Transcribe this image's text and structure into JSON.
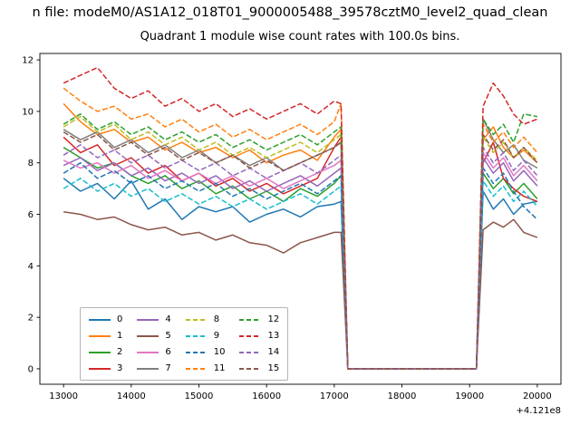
{
  "header": {
    "suptitle": "n file: modeM0/AS1A12_018T01_9000005488_39578cztM0_level2_quad_clean"
  },
  "chart_data": {
    "type": "line",
    "title": "Quadrant 1 module wise count rates with 100.0s bins.",
    "xlabel": "",
    "ylabel": "",
    "x_offset_label": "+4.121e8",
    "xticks": [
      13000,
      14000,
      15000,
      16000,
      17000,
      18000,
      19000,
      20000
    ],
    "yticks": [
      0,
      2,
      4,
      6,
      8,
      10,
      12
    ],
    "xlim": [
      12650,
      20350
    ],
    "ylim": [
      -0.6,
      12.25
    ],
    "grid": false,
    "legend_position": "lower-left, 4 columns",
    "x": [
      13000,
      13250,
      13500,
      13750,
      14000,
      14250,
      14500,
      14750,
      15000,
      15250,
      15500,
      15750,
      16000,
      16250,
      16500,
      16750,
      17000,
      17100,
      17200,
      19100,
      19200,
      19350,
      19500,
      19650,
      19800,
      20000
    ],
    "series": [
      {
        "name": "0",
        "color": "#1f77b4",
        "dashed": false,
        "values": [
          7.4,
          6.9,
          7.2,
          6.6,
          7.3,
          6.2,
          6.6,
          5.8,
          6.3,
          6.1,
          6.3,
          5.7,
          6.0,
          6.2,
          5.9,
          6.3,
          6.4,
          6.5,
          0,
          0,
          6.9,
          6.2,
          6.6,
          6.0,
          6.4,
          6.5
        ]
      },
      {
        "name": "1",
        "color": "#ff7f0e",
        "dashed": false,
        "values": [
          10.3,
          9.6,
          9.1,
          9.3,
          8.8,
          9.0,
          8.5,
          8.8,
          8.4,
          8.6,
          8.2,
          8.5,
          8.0,
          8.3,
          8.5,
          8.1,
          9.0,
          9.3,
          0,
          0,
          8.9,
          9.4,
          8.6,
          8.2,
          8.5,
          8.0
        ]
      },
      {
        "name": "2",
        "color": "#2ca02c",
        "dashed": false,
        "values": [
          8.6,
          8.2,
          7.8,
          8.0,
          7.5,
          7.2,
          7.5,
          7.0,
          7.3,
          6.8,
          7.1,
          6.6,
          6.9,
          6.5,
          7.0,
          6.7,
          7.2,
          7.5,
          0,
          0,
          7.6,
          7.0,
          7.4,
          6.8,
          7.2,
          6.6
        ]
      },
      {
        "name": "3",
        "color": "#d62728",
        "dashed": false,
        "values": [
          9.0,
          8.4,
          8.7,
          7.9,
          8.2,
          7.6,
          7.9,
          7.3,
          7.6,
          7.1,
          7.4,
          6.9,
          7.2,
          6.8,
          7.1,
          7.4,
          8.6,
          9.0,
          0,
          0,
          8.0,
          8.8,
          7.4,
          7.0,
          6.7,
          6.5
        ]
      },
      {
        "name": "4",
        "color": "#9467bd",
        "dashed": false,
        "values": [
          7.9,
          8.2,
          7.7,
          8.0,
          7.5,
          7.8,
          7.3,
          7.6,
          7.2,
          7.5,
          7.0,
          7.3,
          6.9,
          7.2,
          7.5,
          7.1,
          7.6,
          7.8,
          0,
          0,
          8.2,
          7.6,
          8.0,
          7.3,
          7.7,
          7.1
        ]
      },
      {
        "name": "5",
        "color": "#8c564b",
        "dashed": false,
        "values": [
          6.1,
          6.0,
          5.8,
          5.9,
          5.6,
          5.4,
          5.5,
          5.2,
          5.3,
          5.0,
          5.2,
          4.9,
          4.8,
          4.5,
          4.9,
          5.1,
          5.3,
          5.3,
          0,
          0,
          5.4,
          5.7,
          5.5,
          5.8,
          5.3,
          5.1
        ]
      },
      {
        "name": "6",
        "color": "#e377c2",
        "dashed": false,
        "values": [
          8.1,
          7.8,
          8.0,
          7.6,
          7.9,
          7.4,
          7.7,
          7.3,
          7.6,
          7.2,
          7.5,
          7.1,
          7.4,
          7.0,
          7.3,
          7.6,
          7.9,
          8.1,
          0,
          0,
          8.4,
          7.8,
          8.2,
          7.5,
          7.9,
          7.3
        ]
      },
      {
        "name": "7",
        "color": "#7f7f7f",
        "dashed": false,
        "values": [
          9.3,
          8.9,
          9.2,
          8.6,
          8.9,
          8.4,
          8.7,
          8.2,
          8.5,
          8.0,
          8.3,
          7.9,
          8.2,
          7.7,
          8.0,
          8.3,
          8.6,
          8.8,
          0,
          0,
          9.7,
          8.9,
          8.4,
          8.7,
          8.1,
          7.8
        ]
      },
      {
        "name": "8",
        "color": "#bcbd22",
        "dashed": true,
        "values": [
          9.4,
          9.8,
          9.2,
          9.5,
          8.9,
          9.2,
          8.7,
          9.0,
          8.5,
          8.8,
          8.3,
          8.6,
          8.2,
          8.5,
          8.8,
          8.4,
          8.9,
          9.1,
          0,
          0,
          9.0,
          8.4,
          8.8,
          8.2,
          8.6,
          8.1
        ]
      },
      {
        "name": "9",
        "color": "#17becf",
        "dashed": true,
        "values": [
          7.0,
          7.4,
          6.9,
          7.2,
          6.7,
          7.0,
          6.5,
          6.8,
          6.4,
          6.7,
          6.3,
          6.6,
          6.2,
          6.5,
          6.8,
          6.4,
          6.9,
          7.1,
          0,
          0,
          7.3,
          6.7,
          7.1,
          6.5,
          6.9,
          6.3
        ]
      },
      {
        "name": "10",
        "color": "#1f77b4",
        "dashed": true,
        "values": [
          7.6,
          8.0,
          7.4,
          7.7,
          7.2,
          7.5,
          7.0,
          7.3,
          6.9,
          7.2,
          6.7,
          7.0,
          6.6,
          6.9,
          7.2,
          6.8,
          7.3,
          7.5,
          0,
          0,
          7.8,
          7.2,
          7.6,
          6.9,
          6.3,
          5.8
        ]
      },
      {
        "name": "11",
        "color": "#ff7f0e",
        "dashed": true,
        "values": [
          10.9,
          10.4,
          10.0,
          10.2,
          9.7,
          9.9,
          9.4,
          9.7,
          9.2,
          9.5,
          9.0,
          9.3,
          8.9,
          9.2,
          9.5,
          9.1,
          9.6,
          10.3,
          0,
          0,
          9.5,
          8.8,
          9.2,
          8.6,
          9.0,
          8.4
        ]
      },
      {
        "name": "12",
        "color": "#2ca02c",
        "dashed": true,
        "values": [
          9.5,
          9.9,
          9.3,
          9.6,
          9.1,
          9.4,
          8.9,
          9.2,
          8.8,
          9.1,
          8.6,
          8.9,
          8.5,
          8.8,
          9.1,
          8.7,
          9.2,
          9.4,
          0,
          0,
          9.7,
          9.1,
          9.5,
          8.8,
          9.9,
          9.8
        ]
      },
      {
        "name": "13",
        "color": "#d62728",
        "dashed": true,
        "values": [
          11.1,
          11.4,
          11.7,
          10.9,
          10.5,
          10.8,
          10.2,
          10.5,
          10.0,
          10.3,
          9.8,
          10.1,
          9.7,
          10.0,
          10.3,
          9.9,
          10.4,
          10.3,
          0,
          0,
          10.2,
          11.1,
          10.6,
          9.9,
          9.5,
          9.7
        ]
      },
      {
        "name": "14",
        "color": "#9467bd",
        "dashed": true,
        "values": [
          8.3,
          8.7,
          8.2,
          8.5,
          8.0,
          8.3,
          7.8,
          8.1,
          7.7,
          8.0,
          7.5,
          7.8,
          7.4,
          7.7,
          8.0,
          7.6,
          8.1,
          8.3,
          0,
          0,
          8.6,
          8.0,
          8.4,
          7.7,
          8.1,
          7.5
        ]
      },
      {
        "name": "15",
        "color": "#8c564b",
        "dashed": true,
        "values": [
          9.2,
          8.8,
          9.1,
          8.5,
          8.8,
          8.3,
          8.6,
          8.1,
          8.4,
          8.0,
          8.3,
          7.8,
          8.1,
          7.7,
          8.0,
          8.3,
          8.6,
          8.8,
          0,
          0,
          9.1,
          8.5,
          8.9,
          8.2,
          8.6,
          8.0
        ]
      }
    ]
  }
}
